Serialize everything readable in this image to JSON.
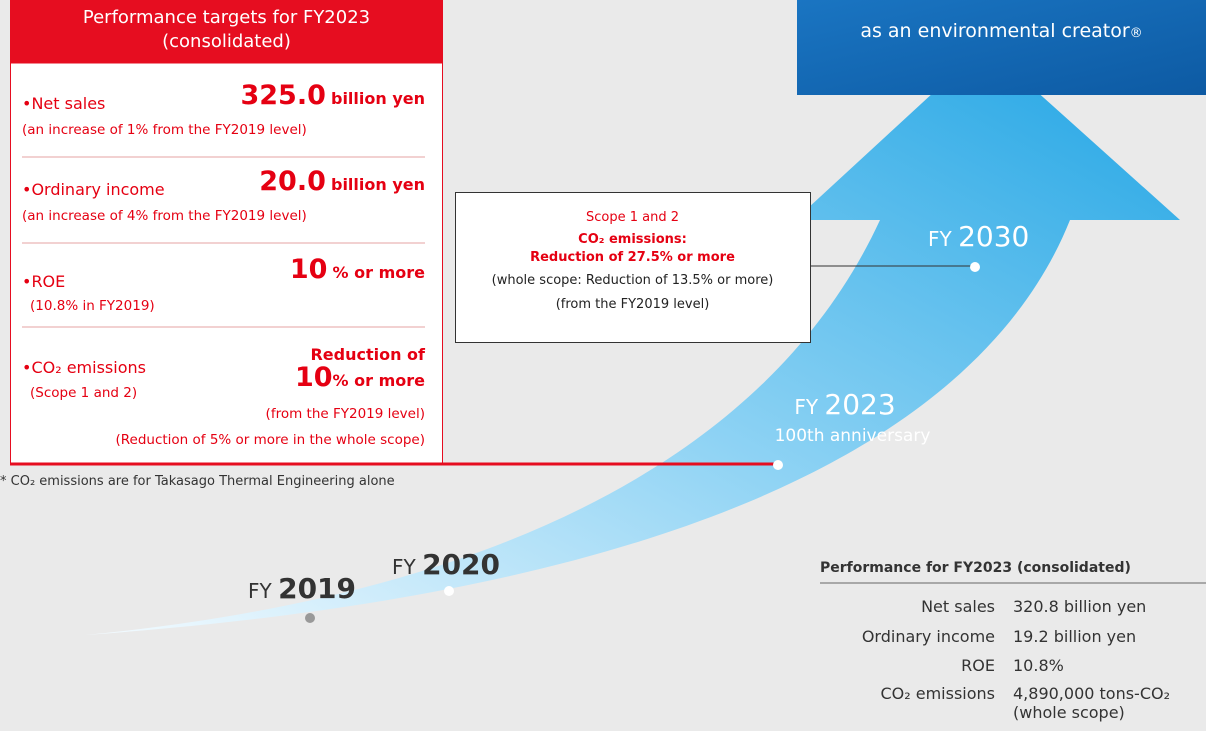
{
  "targets": {
    "title": [
      "Performance targets for FY2023",
      "(consolidated)"
    ],
    "items": [
      {
        "label": "•Net sales",
        "value": "325.0",
        "unit": "billion yen",
        "note": "(an increase of 1% from the FY2019 level)"
      },
      {
        "label": "•Ordinary income",
        "value": "20.0",
        "unit": "billion yen",
        "note": "(an increase of 4% from the FY2019 level)"
      },
      {
        "label": "•ROE",
        "value": "10",
        "unit": "% or more",
        "note": "(10.8% in FY2019)"
      },
      {
        "label": "•CO₂  emissions",
        "sub": "(Scope 1 and 2)",
        "prefix": "Reduction of",
        "value": "10",
        "unit": "% or more",
        "notes": [
          "(from the FY2019 level)",
          "(Reduction of 5% or more in the whole scope)"
        ]
      }
    ]
  },
  "footnote": "* CO₂ emissions are for Takasago Thermal Engineering alone",
  "vision": {
    "text": "as an environmental creator",
    "mark": "®"
  },
  "milestones": [
    {
      "fy": "FY",
      "year": "2019"
    },
    {
      "fy": "FY",
      "year": "2020"
    },
    {
      "fy": "FY",
      "year": "2023",
      "note": "100th anniversary"
    },
    {
      "fy": "FY",
      "year": "2030"
    }
  ],
  "callout": {
    "lines": [
      "Scope 1 and 2",
      "CO₂ emissions:",
      "Reduction of 27.5% or more",
      "(whole scope: Reduction of 13.5% or more)",
      "(from the FY2019 level)"
    ]
  },
  "performance": {
    "title": "Performance for FY2023 (consolidated)",
    "rows": [
      {
        "label": "Net sales",
        "value": "320.8 billion yen"
      },
      {
        "label": "Ordinary income",
        "value": "19.2 billion yen"
      },
      {
        "label": "ROE",
        "value": "10.8%"
      },
      {
        "label": "CO₂ emissions",
        "value": [
          "4,890,000 tons-CO₂",
          "(whole scope)"
        ]
      }
    ]
  }
}
